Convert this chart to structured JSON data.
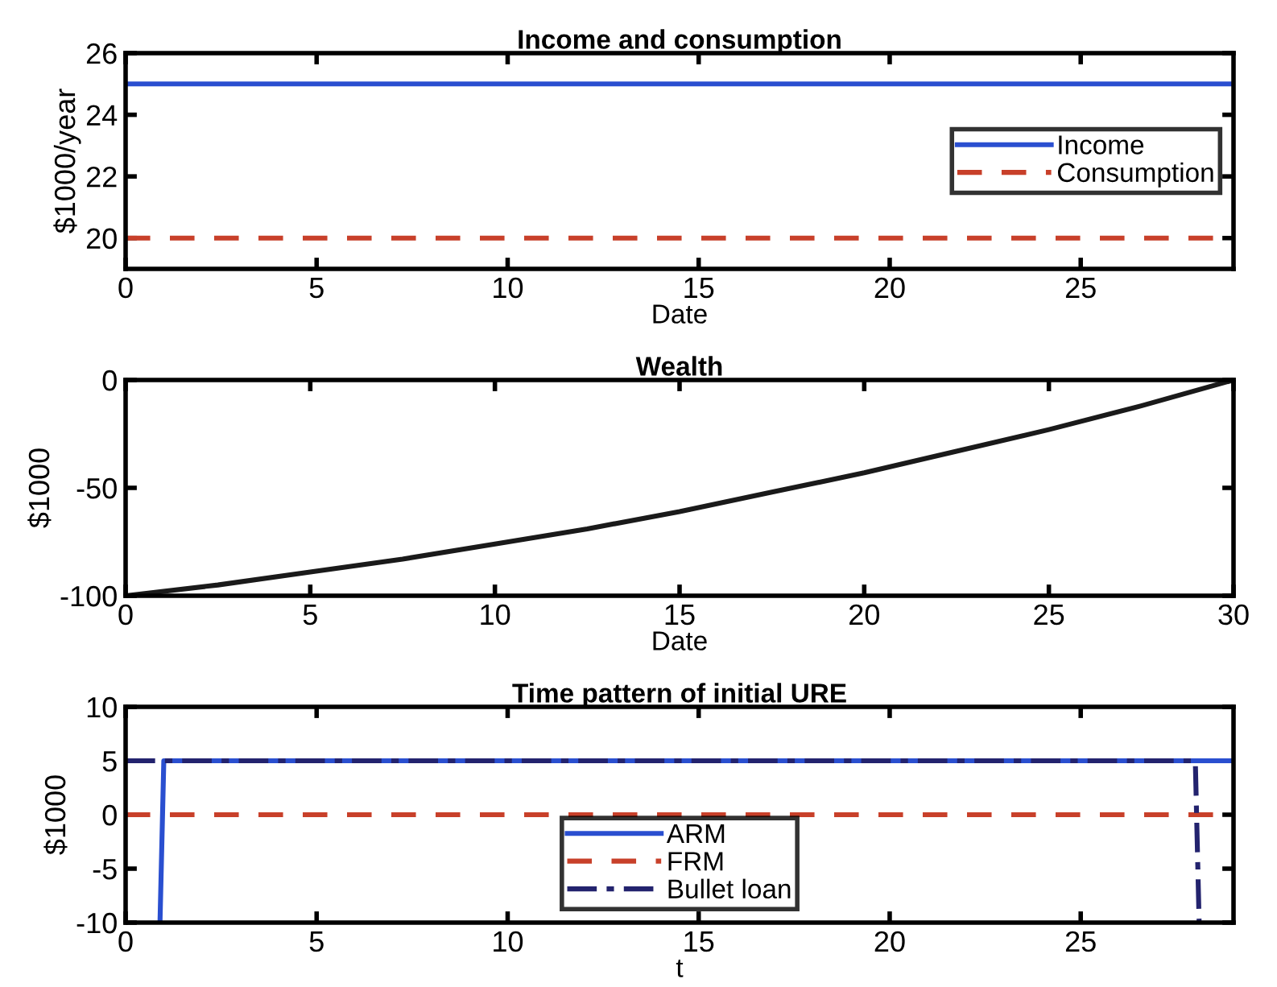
{
  "chart_data": [
    {
      "type": "line",
      "title": "Income and consumption",
      "xlabel": "Date",
      "ylabel": "$1000/year",
      "xlim": [
        0,
        29
      ],
      "xticks": [
        0,
        5,
        10,
        15,
        20,
        25
      ],
      "ylim": [
        19,
        26
      ],
      "yticks": [
        20,
        22,
        24,
        26
      ],
      "grid": false,
      "legend": "right",
      "series": [
        {
          "name": "Income",
          "color": "#2a4fd0",
          "line_style": "solid",
          "x": [
            0,
            29
          ],
          "values": [
            25,
            25
          ]
        },
        {
          "name": "Consumption",
          "color": "#c8402a",
          "line_style": "dashed",
          "x": [
            0,
            29
          ],
          "values": [
            20,
            20
          ]
        }
      ]
    },
    {
      "type": "line",
      "title": "Wealth",
      "xlabel": "Date",
      "ylabel": "$1000",
      "xlim": [
        0,
        30
      ],
      "xticks": [
        0,
        5,
        10,
        15,
        20,
        25,
        30
      ],
      "ylim": [
        -100,
        0
      ],
      "yticks": [
        -100,
        -50,
        0
      ],
      "grid": false,
      "series": [
        {
          "color": "#1a1a1a",
          "line_style": "solid",
          "x": [
            0,
            2.5,
            5,
            7.5,
            10,
            12.5,
            15,
            17.5,
            20,
            22.5,
            25,
            27.5,
            30
          ],
          "values": [
            -100,
            -95,
            -89,
            -83,
            -76,
            -69,
            -61,
            -52,
            -43,
            -33,
            -23,
            -12,
            0
          ]
        }
      ]
    },
    {
      "type": "line",
      "title": "Time pattern of initial URE",
      "xlabel": "t",
      "ylabel": "$1000",
      "xlim": [
        0,
        29
      ],
      "xticks": [
        0,
        5,
        10,
        15,
        20,
        25
      ],
      "ylim": [
        -10,
        10
      ],
      "yticks": [
        -10,
        -5,
        0,
        5,
        10
      ],
      "grid": false,
      "legend": "bottom",
      "series": [
        {
          "name": "ARM",
          "color": "#2a4fd0",
          "line_style": "solid",
          "x": [
            0.9,
            1,
            29
          ],
          "values": [
            -10,
            5,
            5
          ]
        },
        {
          "name": "FRM",
          "color": "#c8402a",
          "line_style": "dashed",
          "x": [
            0,
            29
          ],
          "values": [
            0,
            0
          ]
        },
        {
          "name": "Bullet loan",
          "color": "#23236e",
          "line_style": "dashdot",
          "x": [
            0,
            28,
            28.1
          ],
          "values": [
            5,
            5,
            -10
          ]
        }
      ]
    }
  ]
}
